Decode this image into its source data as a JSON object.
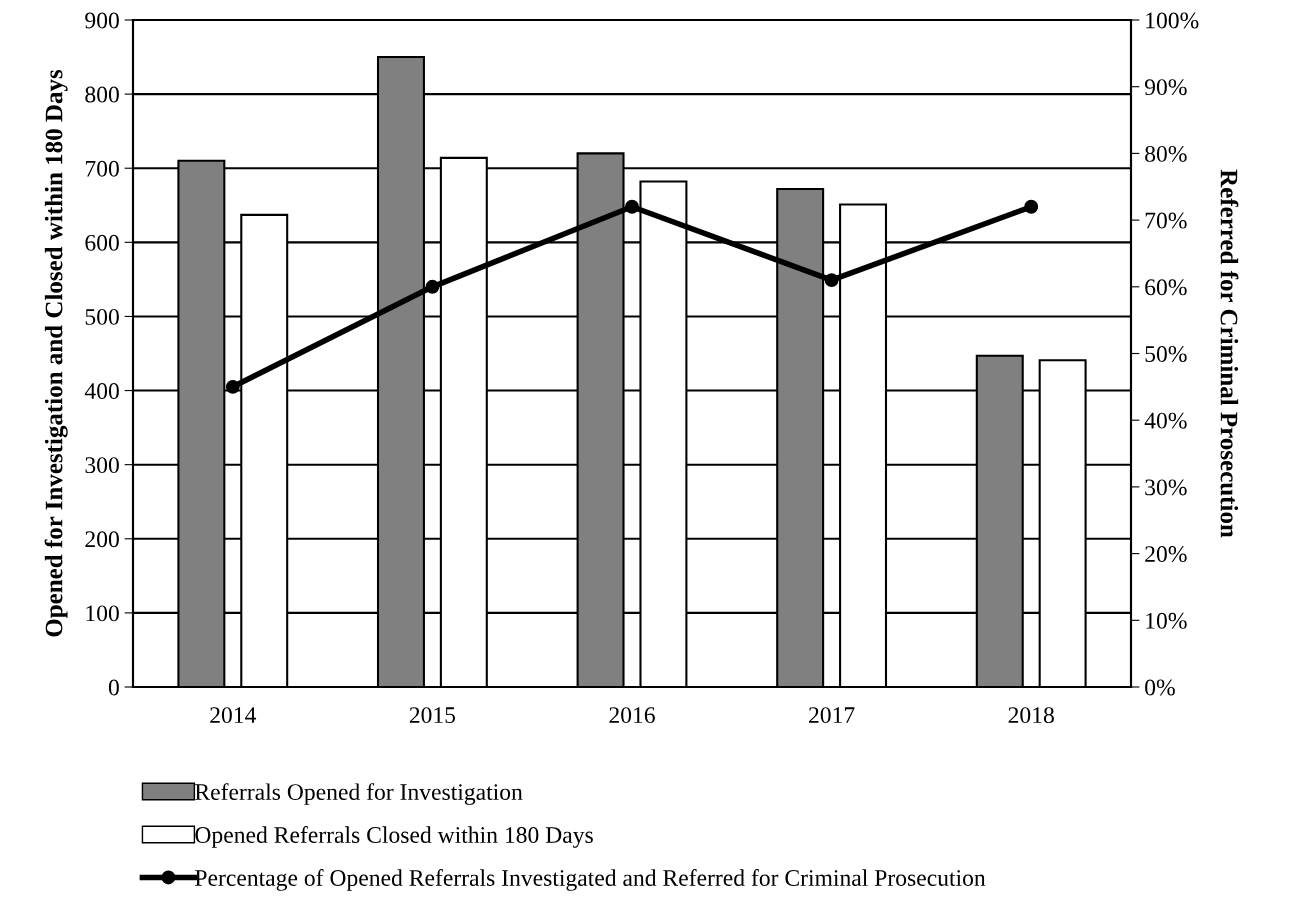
{
  "chart_data": {
    "type": "bar",
    "categories": [
      "2014",
      "2015",
      "2016",
      "2017",
      "2018"
    ],
    "ylabel": "Opened for Investigation and Closed within 180 Days",
    "y2label": "Referred for Criminal Prosecution",
    "series": [
      {
        "name": "Referrals Opened for Investigation",
        "color": "#808080",
        "values": [
          710,
          850,
          720,
          672,
          447
        ]
      },
      {
        "name": "Opened Referrals Closed within 180 Days",
        "color": "#ffffff",
        "values": [
          637,
          714,
          682,
          651,
          441
        ]
      },
      {
        "name": "Percentage of Opened Referrals Investigated and Referred for Criminal Prosecution",
        "type": "line",
        "axis": "y2",
        "color": "#000000",
        "marker": "circle",
        "values": [
          45,
          60,
          72,
          61,
          72
        ]
      }
    ],
    "ylim": [
      0,
      900
    ],
    "yticks": [
      0,
      100,
      200,
      300,
      400,
      500,
      600,
      700,
      800,
      900
    ],
    "y2lim": [
      0,
      100
    ],
    "y2ticks": [
      {
        "value": 0,
        "label": "0%"
      },
      {
        "value": 10,
        "label": "10%"
      },
      {
        "value": 20,
        "label": "20%"
      },
      {
        "value": 30,
        "label": "30%"
      },
      {
        "value": 40,
        "label": "40%"
      },
      {
        "value": 50,
        "label": "50%"
      },
      {
        "value": 60,
        "label": "60%"
      },
      {
        "value": 70,
        "label": "70%"
      },
      {
        "value": 80,
        "label": "80%"
      },
      {
        "value": 90,
        "label": "90%"
      },
      {
        "value": 100,
        "label": "100%"
      }
    ],
    "grid": "y",
    "legend": "bottom"
  }
}
